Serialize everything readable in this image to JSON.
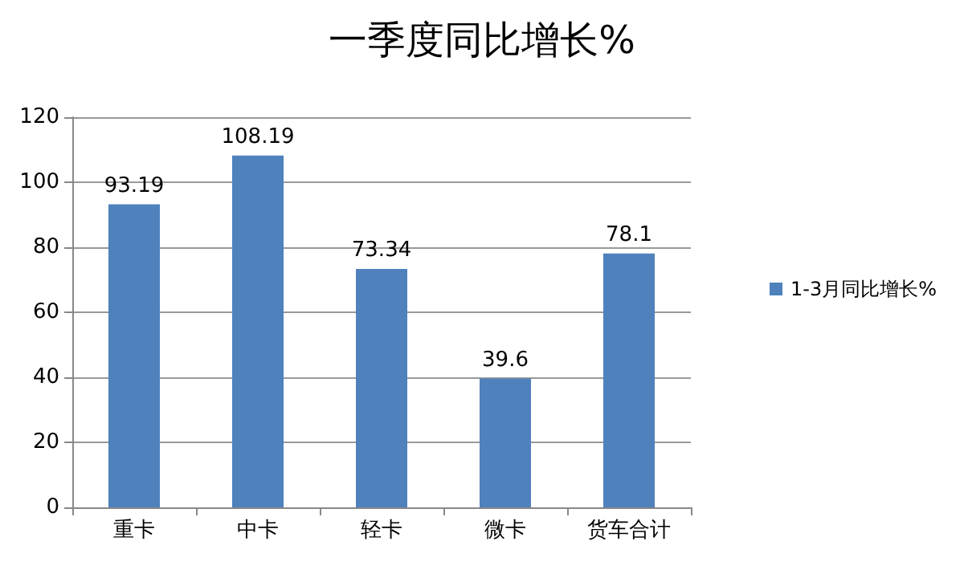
{
  "chart_data": {
    "type": "bar",
    "title": "一季度同比增长%",
    "categories": [
      "重卡",
      "中卡",
      "轻卡",
      "微卡",
      "货车合计"
    ],
    "series": [
      {
        "name": "1-3月同比增长%",
        "color": "#4f81bd",
        "values": [
          93.19,
          108.19,
          73.34,
          39.6,
          78.1
        ]
      }
    ],
    "ylim": [
      0,
      120
    ],
    "yticks": [
      0,
      20,
      40,
      60,
      80,
      100,
      120
    ],
    "grid": "y",
    "legend": "right",
    "data_labels": true
  }
}
